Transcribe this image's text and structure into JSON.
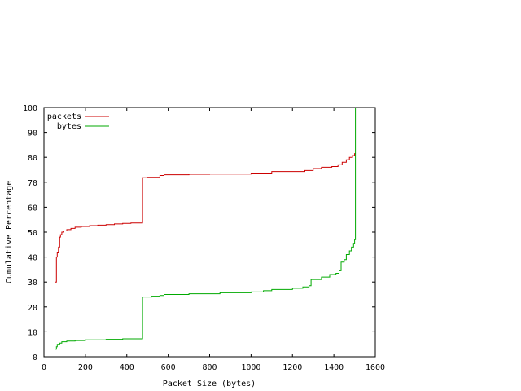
{
  "chart_data": {
    "type": "line",
    "title": "",
    "xlabel": "Packet Size (bytes)",
    "ylabel": "Cumulative Percentage",
    "xlim": [
      0,
      1600
    ],
    "ylim": [
      0,
      100
    ],
    "xticks": [
      0,
      200,
      400,
      600,
      800,
      1000,
      1200,
      1400,
      1600
    ],
    "yticks": [
      0,
      10,
      20,
      30,
      40,
      50,
      60,
      70,
      80,
      90,
      100
    ],
    "x_tick_labels": [
      "0",
      "200",
      "400",
      "600",
      "800",
      "1000",
      "1200",
      "1400",
      "1600"
    ],
    "y_tick_labels": [
      "0",
      "10",
      "20",
      "30",
      "40",
      "50",
      "60",
      "70",
      "80",
      "90",
      "100"
    ],
    "grid": false,
    "legend_position": "top-left",
    "colors": {
      "packets": "#cc0000",
      "bytes": "#00aa00"
    },
    "series": [
      {
        "name": "packets",
        "points": [
          [
            54,
            30
          ],
          [
            60,
            30
          ],
          [
            60,
            40
          ],
          [
            64,
            40
          ],
          [
            64,
            42
          ],
          [
            70,
            42
          ],
          [
            70,
            44
          ],
          [
            76,
            44
          ],
          [
            76,
            48
          ],
          [
            80,
            48
          ],
          [
            80,
            49
          ],
          [
            86,
            49
          ],
          [
            86,
            50
          ],
          [
            96,
            50
          ],
          [
            96,
            50.5
          ],
          [
            110,
            50.5
          ],
          [
            110,
            51
          ],
          [
            130,
            51
          ],
          [
            130,
            51.5
          ],
          [
            150,
            51.5
          ],
          [
            150,
            52
          ],
          [
            180,
            52
          ],
          [
            180,
            52.3
          ],
          [
            220,
            52.3
          ],
          [
            220,
            52.6
          ],
          [
            260,
            52.6
          ],
          [
            260,
            52.8
          ],
          [
            300,
            52.8
          ],
          [
            300,
            53
          ],
          [
            340,
            53
          ],
          [
            340,
            53.3
          ],
          [
            380,
            53.3
          ],
          [
            380,
            53.5
          ],
          [
            420,
            53.5
          ],
          [
            420,
            53.7
          ],
          [
            476,
            53.7
          ],
          [
            476,
            71.8
          ],
          [
            500,
            71.8
          ],
          [
            500,
            72
          ],
          [
            560,
            72
          ],
          [
            560,
            72.7
          ],
          [
            580,
            72.7
          ],
          [
            580,
            73
          ],
          [
            700,
            73
          ],
          [
            700,
            73.2
          ],
          [
            800,
            73.2
          ],
          [
            800,
            73.3
          ],
          [
            1000,
            73.3
          ],
          [
            1000,
            73.7
          ],
          [
            1100,
            73.7
          ],
          [
            1100,
            74.3
          ],
          [
            1260,
            74.3
          ],
          [
            1260,
            74.7
          ],
          [
            1300,
            74.7
          ],
          [
            1300,
            75.5
          ],
          [
            1340,
            75.5
          ],
          [
            1340,
            76
          ],
          [
            1390,
            76
          ],
          [
            1390,
            76.3
          ],
          [
            1420,
            76.3
          ],
          [
            1420,
            77
          ],
          [
            1440,
            77
          ],
          [
            1440,
            78
          ],
          [
            1460,
            78
          ],
          [
            1460,
            79
          ],
          [
            1475,
            79
          ],
          [
            1475,
            80
          ],
          [
            1490,
            80
          ],
          [
            1490,
            80.7
          ],
          [
            1500,
            80.7
          ],
          [
            1500,
            81.5
          ],
          [
            1504,
            81.5
          ]
        ]
      },
      {
        "name": "bytes",
        "points": [
          [
            54,
            3
          ],
          [
            60,
            3
          ],
          [
            60,
            4
          ],
          [
            64,
            4
          ],
          [
            64,
            5
          ],
          [
            76,
            5
          ],
          [
            76,
            5.5
          ],
          [
            86,
            5.5
          ],
          [
            86,
            6
          ],
          [
            110,
            6
          ],
          [
            110,
            6.3
          ],
          [
            150,
            6.3
          ],
          [
            150,
            6.5
          ],
          [
            200,
            6.5
          ],
          [
            200,
            6.8
          ],
          [
            300,
            6.8
          ],
          [
            300,
            7
          ],
          [
            380,
            7
          ],
          [
            380,
            7.2
          ],
          [
            476,
            7.2
          ],
          [
            476,
            24
          ],
          [
            520,
            24
          ],
          [
            520,
            24.3
          ],
          [
            560,
            24.3
          ],
          [
            560,
            24.6
          ],
          [
            580,
            24.6
          ],
          [
            580,
            25
          ],
          [
            700,
            25
          ],
          [
            700,
            25.3
          ],
          [
            850,
            25.3
          ],
          [
            850,
            25.7
          ],
          [
            1000,
            25.7
          ],
          [
            1000,
            26
          ],
          [
            1060,
            26
          ],
          [
            1060,
            26.5
          ],
          [
            1100,
            26.5
          ],
          [
            1100,
            27
          ],
          [
            1200,
            27
          ],
          [
            1200,
            27.5
          ],
          [
            1250,
            27.5
          ],
          [
            1250,
            28
          ],
          [
            1280,
            28
          ],
          [
            1280,
            28.5
          ],
          [
            1290,
            28.5
          ],
          [
            1290,
            31
          ],
          [
            1340,
            31
          ],
          [
            1340,
            32
          ],
          [
            1380,
            32
          ],
          [
            1380,
            33
          ],
          [
            1410,
            33
          ],
          [
            1410,
            33.5
          ],
          [
            1425,
            33.5
          ],
          [
            1425,
            34.5
          ],
          [
            1435,
            34.5
          ],
          [
            1435,
            38
          ],
          [
            1450,
            38
          ],
          [
            1450,
            39
          ],
          [
            1460,
            39
          ],
          [
            1460,
            41
          ],
          [
            1475,
            41
          ],
          [
            1475,
            42.5
          ],
          [
            1485,
            42.5
          ],
          [
            1485,
            44
          ],
          [
            1495,
            44
          ],
          [
            1495,
            45.5
          ],
          [
            1500,
            45.5
          ],
          [
            1500,
            47
          ],
          [
            1504,
            47
          ],
          [
            1504,
            100
          ]
        ]
      }
    ]
  }
}
